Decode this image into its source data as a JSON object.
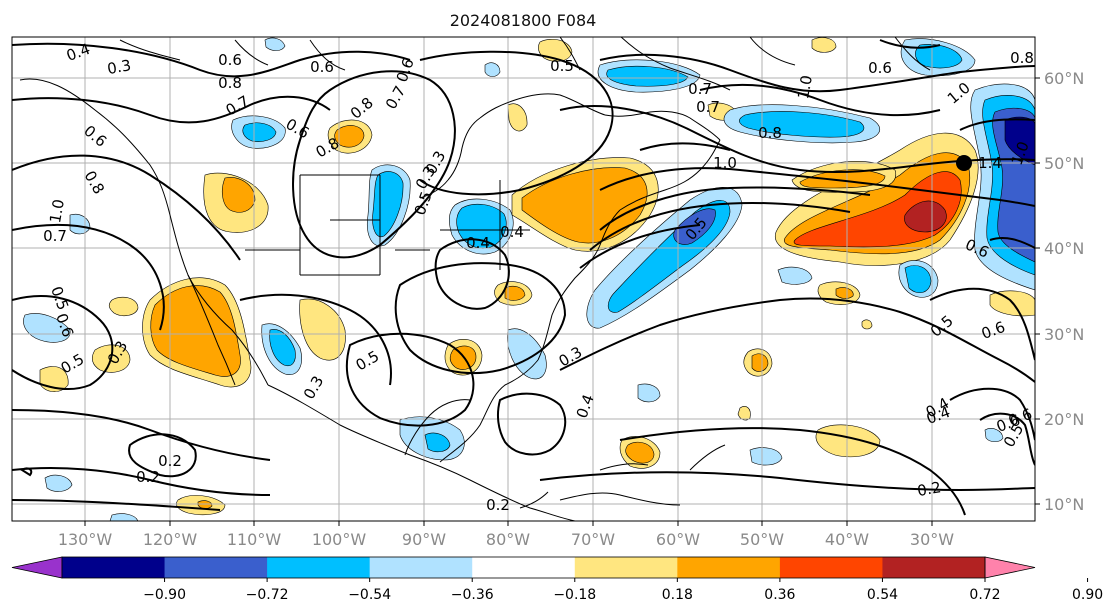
{
  "title": "2024081800 F084",
  "lon_ticks": [
    "130°W",
    "120°W",
    "110°W",
    "100°W",
    "90°W",
    "80°W",
    "70°W",
    "60°W",
    "50°W",
    "40°W",
    "30°W"
  ],
  "lat_ticks": [
    "60°N",
    "50°N",
    "40°N",
    "30°N",
    "20°N",
    "10°N"
  ],
  "colorbar": {
    "labels": [
      "−0.90",
      "−0.72",
      "−0.54",
      "−0.36",
      "−0.18",
      "0.18",
      "0.36",
      "0.54",
      "0.72",
      "0.90"
    ],
    "colors": [
      "#9932cc",
      "#00008b",
      "#3a5fcd",
      "#00bfff",
      "#b0e2ff",
      "#ffffff",
      "#ffe680",
      "#ffa500",
      "#ff4500",
      "#b22222",
      "#ff82ab"
    ]
  },
  "contour_labels": [
    "0.4",
    "0.3",
    "0.6",
    "0.8",
    "0.7",
    "0.6",
    "0.8",
    "0.8",
    "0.6",
    "0.7",
    "0.6",
    "1.0",
    "0.8",
    "0.7",
    "0.5",
    "0.6",
    "0.3",
    "0.4",
    "0.4",
    "0.3",
    "0.5",
    "0.7",
    "0.7",
    "0.8",
    "1.0",
    "1.0",
    "0.6",
    "1.0",
    "1.4",
    "1.0",
    "0.5",
    "0.6",
    "0.5",
    "0.6",
    "0.4",
    "0.5",
    "0.6",
    "0.5",
    "0.3",
    "0.3",
    "0.5",
    "0.3",
    "0.4",
    "0.2",
    "0.2",
    "0.2",
    "0.4",
    "0.6",
    "0.5",
    "0.6",
    "0.2",
    "0.8"
  ],
  "shade_colors": {
    "light_blue": "#b0e2ff",
    "blue": "#00bfff",
    "mid_blue": "#3a5fcd",
    "navy": "#00008b",
    "yellow": "#ffe680",
    "orange": "#ffa500",
    "red_orange": "#ff4500",
    "dark_red": "#b22222"
  }
}
